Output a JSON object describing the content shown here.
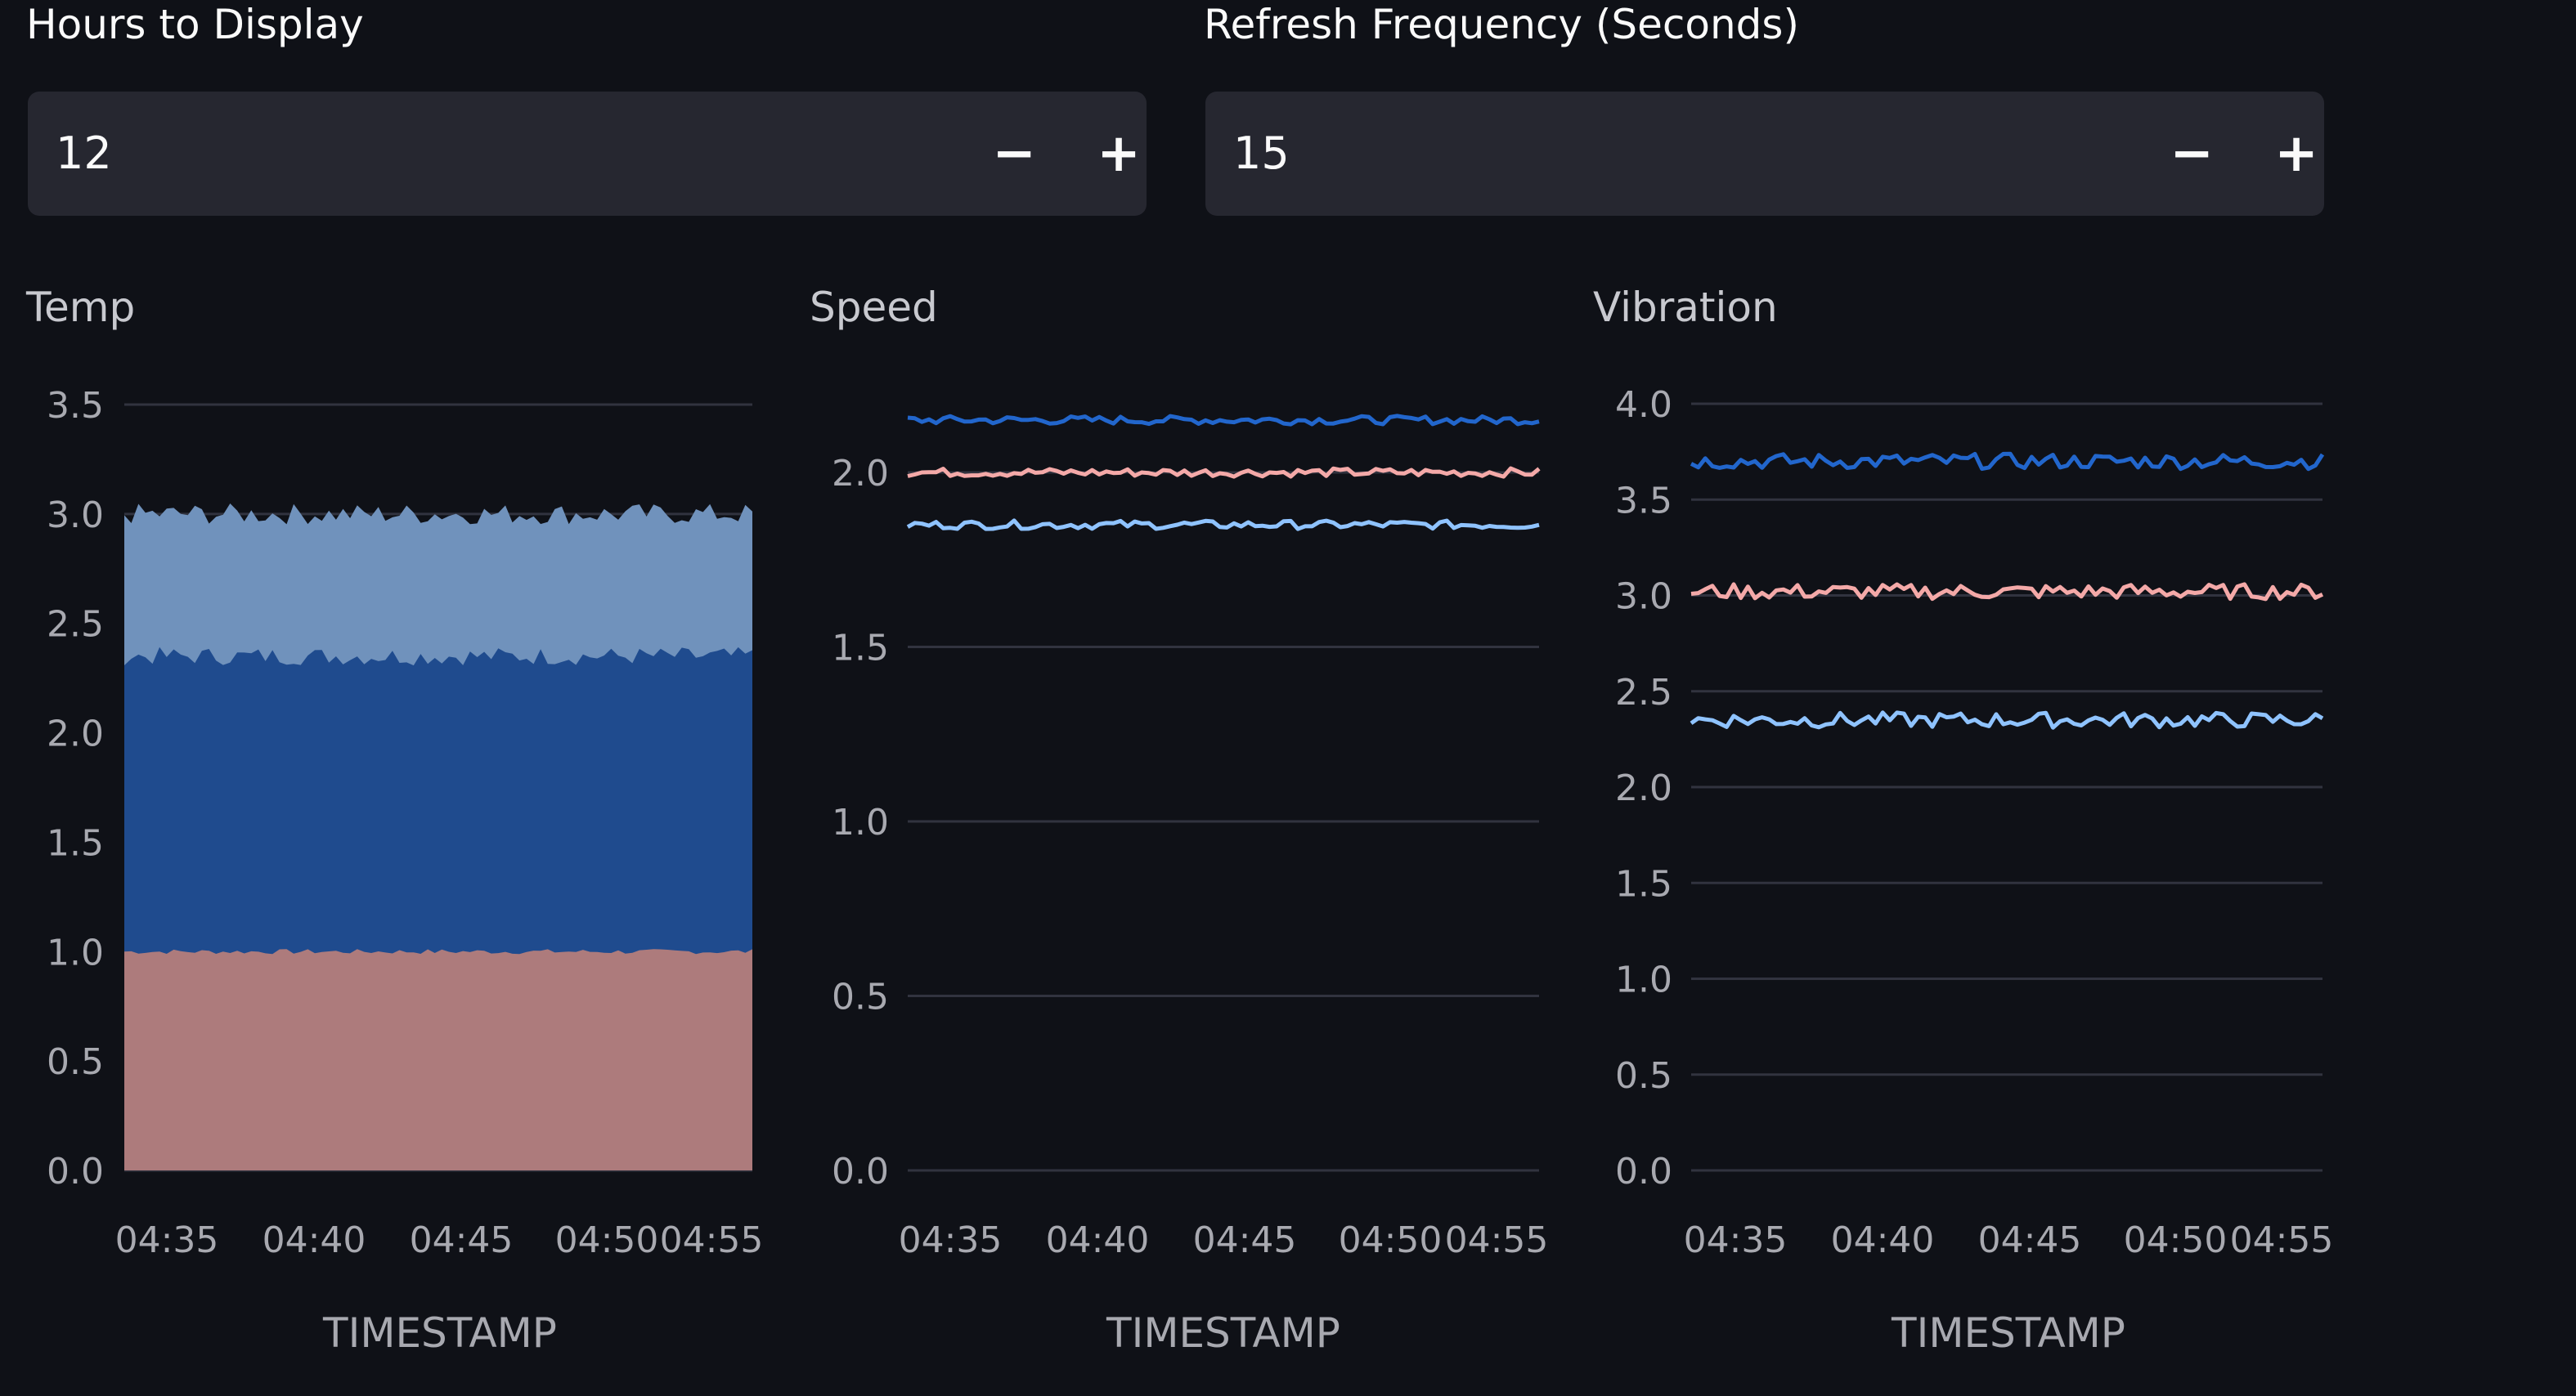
{
  "controls": {
    "hours": {
      "label": "Hours to Display",
      "value": "12",
      "minus": "−",
      "plus": "+"
    },
    "refresh": {
      "label": "Refresh Frequency (Seconds)",
      "value": "15",
      "minus": "−",
      "plus": "+"
    }
  },
  "colors": {
    "background": "#0f1117",
    "input_bg": "#262730",
    "grid": "#31333f",
    "dark_blue": "#2266cc",
    "pink": "#f4a9a8",
    "light_blue": "#8fc3ff",
    "area_top": "#7092bc",
    "area_mid": "#1f4b8e",
    "area_bottom": "#ad7b7c"
  },
  "chart_data": [
    {
      "type": "area",
      "title": "Temp",
      "xlabel": "TIMESTAMP",
      "ylabel": "",
      "stacked": true,
      "x_ticks": [
        "04:35",
        "04:40",
        "04:45",
        "04:50",
        "04:55"
      ],
      "y_ticks": [
        "0.0",
        "0.5",
        "1.0",
        "1.5",
        "2.0",
        "2.5",
        "3.0",
        "3.5"
      ],
      "ylim": [
        0,
        3.5
      ],
      "series": [
        {
          "values_approx": 1.0,
          "color": "#ad7b7c"
        },
        {
          "values_approx": 1.35,
          "color": "#1f4b8e"
        },
        {
          "values_approx": 0.65,
          "color": "#7092bc"
        }
      ],
      "stack_totals": [
        1.0,
        2.35,
        3.0
      ]
    },
    {
      "type": "line",
      "title": "Speed",
      "xlabel": "TIMESTAMP",
      "ylabel": "",
      "x_ticks": [
        "04:35",
        "04:40",
        "04:45",
        "04:50",
        "04:55"
      ],
      "y_ticks": [
        "0.0",
        "0.5",
        "1.0",
        "1.5",
        "2.0"
      ],
      "ylim": [
        0,
        2.2
      ],
      "series": [
        {
          "values_approx": 2.15,
          "color": "#2266cc"
        },
        {
          "values_approx": 2.0,
          "color": "#f4a9a8"
        },
        {
          "values_approx": 1.85,
          "color": "#8fc3ff"
        }
      ]
    },
    {
      "type": "line",
      "title": "Vibration",
      "xlabel": "TIMESTAMP",
      "ylabel": "",
      "x_ticks": [
        "04:35",
        "04:40",
        "04:45",
        "04:50",
        "04:55"
      ],
      "y_ticks": [
        "0.0",
        "0.5",
        "1.0",
        "1.5",
        "2.0",
        "2.5",
        "3.0",
        "3.5",
        "4.0"
      ],
      "ylim": [
        0,
        4.0
      ],
      "series": [
        {
          "values_approx": 3.7,
          "color": "#2266cc"
        },
        {
          "values_approx": 3.02,
          "color": "#f4a9a8"
        },
        {
          "values_approx": 2.35,
          "color": "#8fc3ff"
        }
      ]
    }
  ]
}
